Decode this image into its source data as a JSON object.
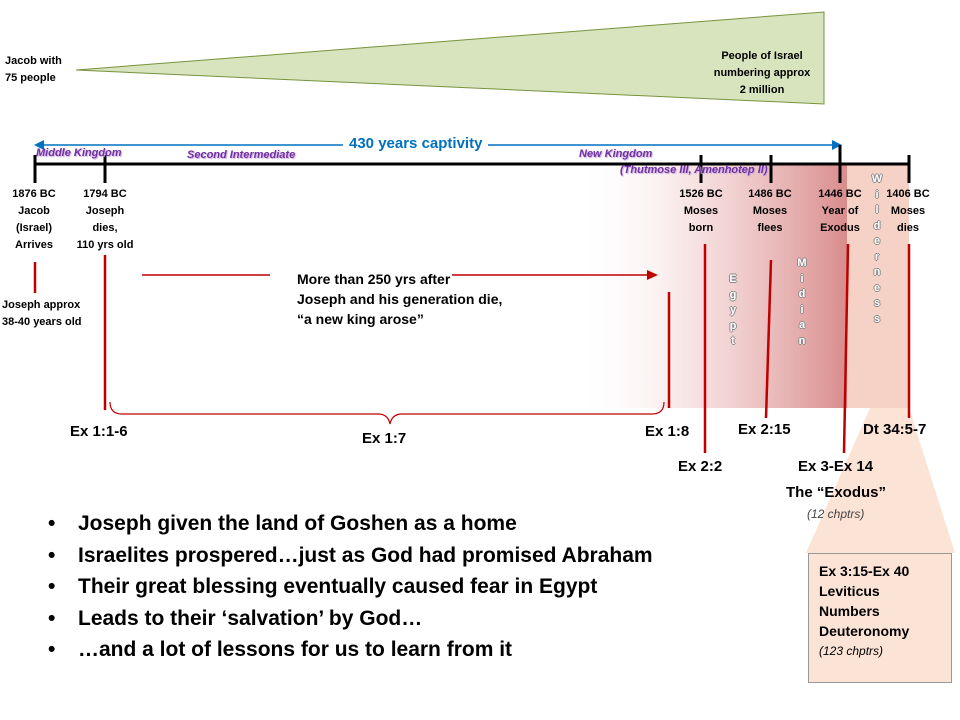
{
  "top": {
    "start_label": "Jacob with\n75 people",
    "end_label": "People of Israel\nnumbering approx\n2 million"
  },
  "captivity_label": "430 years captivity",
  "eras": {
    "middle": "Middle Kingdom",
    "second": "Second Intermediate",
    "new": "New Kingdom",
    "new_sub": "(Thutmose III, Amenhotep II)"
  },
  "events": [
    {
      "year": "1876 BC",
      "desc": "Jacob\n(Israel)\nArrives"
    },
    {
      "year": "1794 BC",
      "desc": "Joseph\ndies,\n110 yrs old"
    },
    {
      "year": "1526 BC",
      "desc": "Moses\nborn"
    },
    {
      "year": "1486 BC",
      "desc": "Moses\nflees"
    },
    {
      "year": "1446 BC",
      "desc": "Year of\nExodus"
    },
    {
      "year": "1406 BC",
      "desc": "Moses\ndies"
    }
  ],
  "joseph_note": "Joseph approx\n38-40 years old",
  "gap_note": "More than 250 yrs after\nJoseph and his generation die,\n“a new king arose”",
  "regions": {
    "egypt": "Egypt",
    "midian": "Midian",
    "wilderness": "Wilderness"
  },
  "refs": {
    "ex1_1": "Ex 1:1-6",
    "ex1_7": "Ex 1:7",
    "ex1_8": "Ex 1:8",
    "ex2_2": "Ex 2:2",
    "ex2_15": "Ex 2:15",
    "ex3_14": "Ex 3-Ex 14",
    "dt34": "Dt 34:5-7"
  },
  "exodus": {
    "title": "The “Exodus”",
    "chapters": "(12 chptrs)"
  },
  "books": {
    "line1": "Ex 3:15-Ex 40",
    "line2": "Leviticus",
    "line3": "Numbers",
    "line4": "Deuteronomy",
    "chapters": "(123 chptrs)"
  },
  "bullets": [
    "Joseph given the land of Goshen as a home",
    "Israelites prospered…just as God had promised Abraham",
    "Their great blessing eventually caused fear in Egypt",
    "Leads to their ‘salvation’ by God…",
    "…and a lot of lessons for us to learn from it"
  ],
  "colors": {
    "triangle_fill": "#d7e4bd",
    "triangle_stroke": "#77933c",
    "accent_red": "#c00000",
    "captivity_blue": "#0070c0",
    "era_purple": "#7030a0",
    "callout_fill": "#fbe3d6"
  }
}
